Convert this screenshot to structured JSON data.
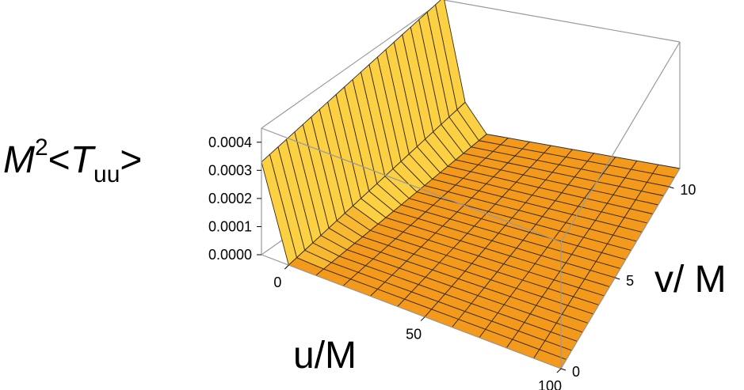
{
  "chart_data": {
    "type": "surface3d",
    "title": "",
    "zlabel": {
      "base": "M",
      "power": "2",
      "lt": "<",
      "var": "T",
      "sub": "uu",
      "gt": ">"
    },
    "xlabel": "u/M",
    "ylabel": "v/ M",
    "x_ticks": [
      "0",
      "50",
      "100"
    ],
    "y_ticks": [
      "0",
      "5",
      "10"
    ],
    "z_ticks": [
      "0.0000",
      "0.0001",
      "0.0002",
      "0.0003",
      "0.0004"
    ],
    "x_range": [
      -10,
      100
    ],
    "y_range": [
      0,
      11
    ],
    "z_range": [
      0,
      0.00045
    ],
    "x_grid": [
      -10,
      0,
      10,
      20,
      30,
      40,
      50,
      60,
      70,
      80,
      90,
      100
    ],
    "y_grid": [
      0,
      0.5,
      1,
      1.5,
      2,
      2.5,
      3,
      3.5,
      4,
      4.5,
      5,
      5.5,
      6,
      6.5,
      7,
      7.5,
      8,
      8.5,
      9,
      9.5,
      10,
      10.5,
      11
    ],
    "surface_profile": {
      "description": "T_uu depends mainly on u; peak near u = -10 rising toward larger v",
      "u": [
        -10,
        0,
        10,
        20,
        30,
        40,
        50,
        60,
        70,
        80,
        90,
        100
      ],
      "Tuu_v0": [
        0.00033,
        0.0,
        0.0,
        0.0,
        0.0,
        0.0,
        0.0,
        0.0,
        0.0,
        0.0,
        0.0,
        0.0
      ],
      "Tuu_v11": [
        0.00046,
        0.0001,
        0.0,
        0.0,
        0.0,
        0.0,
        0.0,
        0.0,
        0.0,
        0.0,
        0.0,
        0.0
      ]
    },
    "colors": {
      "surface_light": "#fbd042",
      "surface_dark": "#f39a1c",
      "mesh": "#3a2a10",
      "box": "#9a9a9a"
    }
  }
}
